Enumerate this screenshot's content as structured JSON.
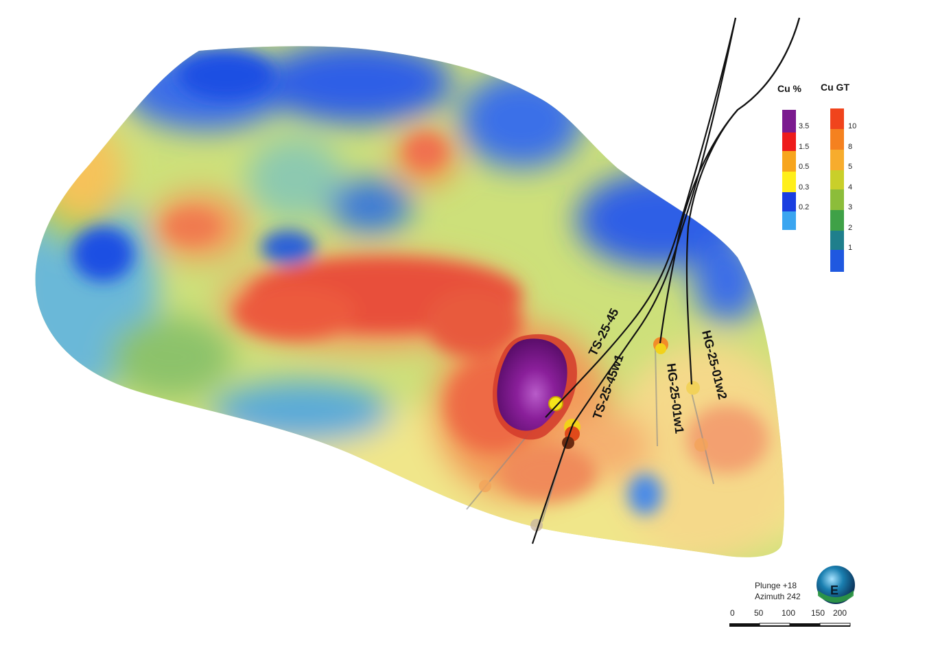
{
  "legend_cu": {
    "title": "Cu %",
    "ticks": [
      "3.5",
      "1.5",
      "0.5",
      "0.3",
      "0.2"
    ],
    "colors": [
      "#7b1a8f",
      "#ee1b1b",
      "#f7a51d",
      "#ffef1a",
      "#1a3ee0",
      "#3aa5f0"
    ]
  },
  "legend_gt": {
    "title": "Cu GT",
    "ticks": [
      "10",
      "8",
      "5",
      "4",
      "3",
      "2",
      "1"
    ],
    "colors": [
      "#f0441c",
      "#f5811f",
      "#f7ac2d",
      "#c9cf2a",
      "#8cbd3a",
      "#3fa147",
      "#1f7f8c",
      "#1f58e0"
    ]
  },
  "drillholes": [
    "TS-25-45",
    "TS-25-45w1",
    "HG-25-01w1",
    "HG-25-01w2"
  ],
  "view": {
    "plunge": "Plunge +18",
    "azimuth": "Azimuth 242"
  },
  "scale_bar": {
    "ticks": [
      "0",
      "50",
      "100",
      "150",
      "200"
    ]
  },
  "compass": {
    "label": "E"
  }
}
